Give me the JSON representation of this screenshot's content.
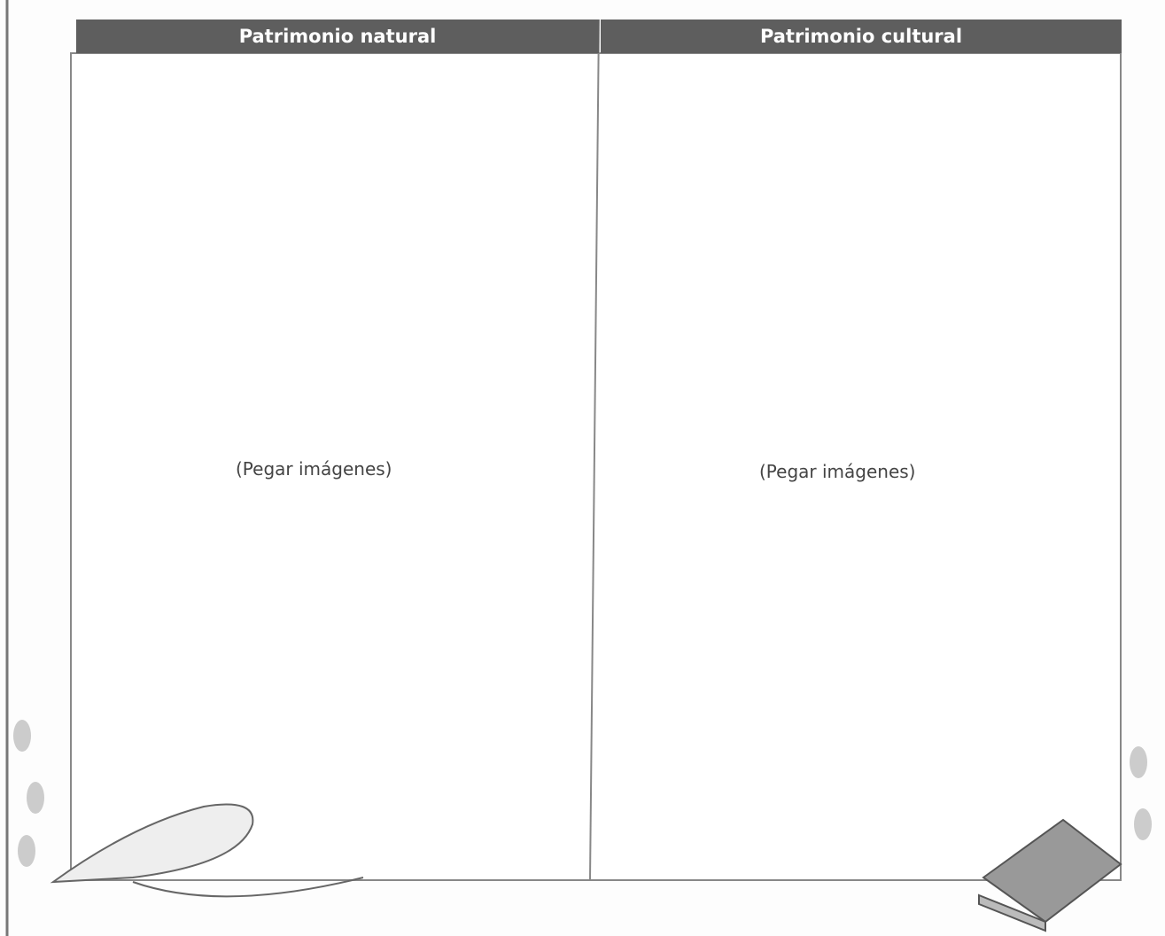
{
  "table": {
    "headers": [
      "Patrimonio natural",
      "Patrimonio cultural"
    ],
    "rows": [
      [
        "(Pegar imágenes)",
        "(Pegar imágenes)"
      ]
    ]
  }
}
